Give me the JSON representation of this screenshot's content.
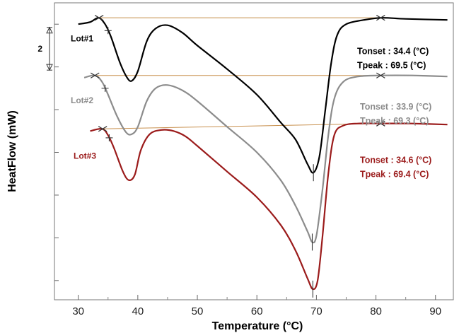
{
  "chart_data": {
    "type": "line",
    "xlabel": "Temperature (°C)",
    "ylabel": "HeatFlow (mW)",
    "xlim": [
      26,
      93
    ],
    "x_ticks": [
      30,
      40,
      50,
      60,
      70,
      80,
      90
    ],
    "x_tick_labels": [
      "30",
      "40",
      "50",
      "60",
      "70",
      "80",
      "90"
    ],
    "y_units": "relative",
    "ylim": [
      -6.9,
      7.0
    ],
    "scale_bar": {
      "label": "2",
      "value": 2
    },
    "colors": {
      "Lot#1": "#000000",
      "Lot#2": "#8c8c8c",
      "Lot#3": "#9b1b1b",
      "baseline": "#c8904e"
    },
    "series": [
      {
        "name": "Lot#1",
        "color": "#000000",
        "label": "Lot#1",
        "tonset_text": "Tonset :  34.4 (°C)",
        "tpeak_text": "Tpeak :  69.5 (°C)",
        "tonset": 34.4,
        "tpeak": 69.5,
        "baseline": [
          [
            33.5,
            6.3
          ],
          [
            80.8,
            6.3
          ]
        ],
        "points": [
          [
            30,
            6.0
          ],
          [
            32,
            6.1
          ],
          [
            33.4,
            6.3
          ],
          [
            34.5,
            6.0
          ],
          [
            35.5,
            5.4
          ],
          [
            37,
            4.2
          ],
          [
            38.2,
            3.5
          ],
          [
            39,
            3.35
          ],
          [
            40,
            3.8
          ],
          [
            41.5,
            5.2
          ],
          [
            43,
            5.8
          ],
          [
            45,
            5.95
          ],
          [
            47.5,
            5.6
          ],
          [
            50,
            5.0
          ],
          [
            55,
            3.9
          ],
          [
            60,
            2.7
          ],
          [
            64,
            1.4
          ],
          [
            66.5,
            0.6
          ],
          [
            68.5,
            -0.55
          ],
          [
            69.5,
            -0.95
          ],
          [
            70.5,
            -0.2
          ],
          [
            71.5,
            2.0
          ],
          [
            72.5,
            4.2
          ],
          [
            73.5,
            5.5
          ],
          [
            75,
            6.0
          ],
          [
            78,
            6.2
          ],
          [
            81,
            6.3
          ],
          [
            85,
            6.25
          ],
          [
            92,
            6.2
          ]
        ]
      },
      {
        "name": "Lot#2",
        "color": "#8c8c8c",
        "label": "Lot#2",
        "tonset_text": "Tonset :  33.9 (°C)",
        "tpeak_text": "Tpeak :  69.3 (°C)",
        "tonset": 33.9,
        "tpeak": 69.3,
        "baseline": [
          [
            32.8,
            3.6
          ],
          [
            80.8,
            3.6
          ]
        ],
        "points": [
          [
            31,
            3.5
          ],
          [
            32.8,
            3.6
          ],
          [
            34,
            3.3
          ],
          [
            35,
            2.7
          ],
          [
            36.5,
            1.7
          ],
          [
            38,
            0.95
          ],
          [
            39,
            0.85
          ],
          [
            40,
            1.2
          ],
          [
            41.5,
            2.4
          ],
          [
            43,
            3.0
          ],
          [
            45,
            3.15
          ],
          [
            47.5,
            2.9
          ],
          [
            50,
            2.4
          ],
          [
            55,
            1.2
          ],
          [
            60,
            0.0
          ],
          [
            64,
            -1.3
          ],
          [
            66.5,
            -2.5
          ],
          [
            68.5,
            -3.7
          ],
          [
            69.3,
            -4.2
          ],
          [
            70,
            -3.9
          ],
          [
            71,
            -1.8
          ],
          [
            72,
            0.8
          ],
          [
            73,
            2.5
          ],
          [
            74.5,
            3.3
          ],
          [
            77,
            3.55
          ],
          [
            81,
            3.6
          ],
          [
            86,
            3.6
          ],
          [
            92,
            3.55
          ]
        ]
      },
      {
        "name": "Lot#3",
        "color": "#9b1b1b",
        "label": "Lot#3",
        "tonset_text": "Tonset :  34.6 (°C)",
        "tpeak_text": "Tpeak :  69.4 (°C)",
        "tonset": 34.6,
        "tpeak": 69.4,
        "baseline": [
          [
            34.1,
            1.1
          ],
          [
            80.8,
            1.35
          ]
        ],
        "points": [
          [
            32,
            1.0
          ],
          [
            34,
            1.1
          ],
          [
            35,
            0.8
          ],
          [
            36,
            0.2
          ],
          [
            37.5,
            -0.9
          ],
          [
            38.5,
            -1.3
          ],
          [
            39.5,
            -1.05
          ],
          [
            40.5,
            0.1
          ],
          [
            42,
            0.85
          ],
          [
            44,
            1.05
          ],
          [
            46,
            1.0
          ],
          [
            48,
            0.75
          ],
          [
            50,
            0.3
          ],
          [
            55,
            -0.9
          ],
          [
            60,
            -2.1
          ],
          [
            64,
            -3.4
          ],
          [
            66.5,
            -4.6
          ],
          [
            68.5,
            -5.9
          ],
          [
            69.4,
            -6.4
          ],
          [
            70.2,
            -6.0
          ],
          [
            71,
            -4.0
          ],
          [
            72,
            -1.0
          ],
          [
            73,
            0.8
          ],
          [
            74.5,
            1.25
          ],
          [
            77,
            1.35
          ],
          [
            81,
            1.35
          ],
          [
            86,
            1.35
          ],
          [
            92,
            1.3
          ]
        ]
      }
    ]
  }
}
